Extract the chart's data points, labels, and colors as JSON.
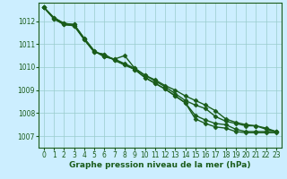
{
  "title": "Graphe pression niveau de la mer (hPa)",
  "xlabel_hours": [
    0,
    1,
    2,
    3,
    4,
    5,
    6,
    7,
    8,
    9,
    10,
    11,
    12,
    13,
    14,
    15,
    16,
    17,
    18,
    19,
    20,
    21,
    22,
    23
  ],
  "ylim": [
    1006.5,
    1012.8
  ],
  "xlim": [
    -0.5,
    23.5
  ],
  "yticks": [
    1007,
    1008,
    1009,
    1010,
    1011,
    1012
  ],
  "background_color": "#cceeff",
  "grid_color": "#99cccc",
  "line_color": "#1a5c1a",
  "line_width": 1.0,
  "marker": "D",
  "marker_size": 2.5,
  "lines": [
    [
      1012.6,
      1012.1,
      1011.85,
      1011.8,
      1011.2,
      1010.65,
      1010.55,
      1010.3,
      1010.1,
      1009.9,
      1009.55,
      1009.3,
      1009.05,
      1008.75,
      1008.45,
      1007.75,
      1007.55,
      1007.4,
      1007.35,
      1007.2,
      1007.15,
      1007.15,
      1007.15,
      1007.15
    ],
    [
      1012.6,
      1012.1,
      1011.85,
      1011.8,
      1011.2,
      1010.65,
      1010.55,
      1010.3,
      1010.1,
      1009.9,
      1009.55,
      1009.3,
      1009.05,
      1008.75,
      1008.45,
      1007.9,
      1007.7,
      1007.55,
      1007.5,
      1007.3,
      1007.2,
      1007.2,
      1007.2,
      1007.2
    ],
    [
      1012.6,
      1012.15,
      1011.9,
      1011.85,
      1011.25,
      1010.7,
      1010.45,
      1010.35,
      1010.15,
      1009.95,
      1009.65,
      1009.4,
      1009.15,
      1008.85,
      1008.55,
      1008.35,
      1008.2,
      1007.85,
      1007.65,
      1007.55,
      1007.45,
      1007.45,
      1007.3,
      1007.2
    ],
    [
      1012.6,
      1012.15,
      1011.9,
      1011.85,
      1011.25,
      1010.7,
      1010.45,
      1010.35,
      1010.5,
      1009.95,
      1009.65,
      1009.45,
      1009.2,
      1009.0,
      1008.75,
      1008.55,
      1008.35,
      1008.1,
      1007.75,
      1007.6,
      1007.5,
      1007.45,
      1007.35,
      1007.2
    ]
  ],
  "figsize": [
    3.2,
    2.0
  ],
  "dpi": 100,
  "title_fontsize": 6.5,
  "tick_fontsize": 5.5
}
